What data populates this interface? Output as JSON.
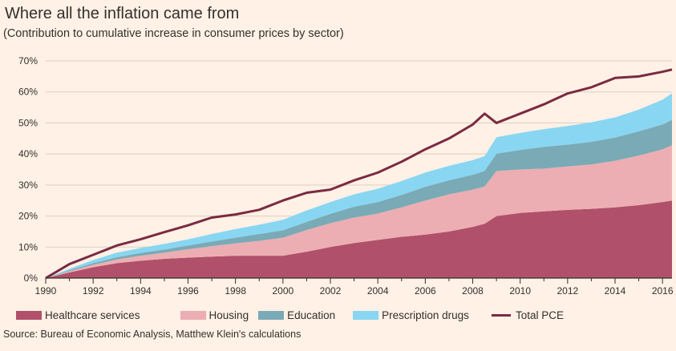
{
  "title": "Where all the inflation came from",
  "subtitle": "(Contribution to cumulative increase in consumer prices by sector)",
  "source": "Source: Bureau of Economic Analysis, Matthew Klein's calculations",
  "colors": {
    "background": "#fff1e5",
    "healthcare": "#b1506a",
    "housing": "#ecaeb2",
    "education": "#79aab6",
    "drugs": "#88d6f2",
    "total": "#7a2a42",
    "grid": "#d9cfc4",
    "axis": "#33302e"
  },
  "chart_data": {
    "type": "area",
    "stacked": true,
    "xlabel": "",
    "ylabel": "",
    "xlim": [
      1990,
      2016.4
    ],
    "ylim": [
      0,
      70
    ],
    "yticks": [
      "0%",
      "10%",
      "20%",
      "30%",
      "40%",
      "50%",
      "60%",
      "70%"
    ],
    "xticks": [
      "1990",
      "1992",
      "1994",
      "1996",
      "1998",
      "2000",
      "2002",
      "2004",
      "2006",
      "2008",
      "2010",
      "2012",
      "2014",
      "2016"
    ],
    "grid": true,
    "legend_position": "bottom",
    "x": [
      1990,
      1991,
      1992,
      1993,
      1994,
      1995,
      1996,
      1997,
      1998,
      1999,
      2000,
      2001,
      2002,
      2003,
      2004,
      2005,
      2006,
      2007,
      2008,
      2008.5,
      2009,
      2010,
      2011,
      2012,
      2013,
      2014,
      2015,
      2016,
      2016.4
    ],
    "series": [
      {
        "name": "Healthcare services",
        "kind": "area",
        "values": [
          0,
          1.8,
          3.5,
          4.8,
          5.6,
          6.2,
          6.6,
          6.9,
          7.2,
          7.2,
          7.2,
          8.5,
          10,
          11.3,
          12.3,
          13.3,
          14,
          15,
          16.5,
          17.5,
          20,
          21,
          21.5,
          22,
          22.3,
          22.8,
          23.5,
          24.5,
          25
        ]
      },
      {
        "name": "Housing",
        "kind": "area",
        "values": [
          0,
          0.4,
          0.8,
          1.2,
          1.6,
          2,
          2.7,
          3.4,
          4,
          4.8,
          5.8,
          7,
          7.7,
          8.2,
          8.5,
          9.5,
          11,
          12,
          12,
          12,
          14.5,
          14,
          13.8,
          14,
          14.3,
          15,
          16,
          17,
          17.8
        ]
      },
      {
        "name": "Education",
        "kind": "area",
        "values": [
          0,
          0.3,
          0.5,
          0.7,
          0.9,
          1,
          1.2,
          1.5,
          1.8,
          2.2,
          2.4,
          2.6,
          3,
          3.5,
          3.7,
          4,
          4.4,
          4.5,
          4.8,
          5,
          5.6,
          6.3,
          7,
          7,
          7.3,
          7.5,
          7.8,
          8,
          8.2
        ]
      },
      {
        "name": "Prescription drugs",
        "kind": "area",
        "values": [
          0,
          0.5,
          1,
          1.5,
          1.6,
          1.8,
          2,
          2.4,
          2.8,
          3,
          3.4,
          3.7,
          3.8,
          4,
          4.3,
          4.5,
          4.6,
          4.7,
          4.7,
          4.8,
          5.3,
          5.5,
          5.7,
          6,
          6.3,
          6.5,
          7,
          8,
          8.5
        ]
      },
      {
        "name": "Total PCE",
        "kind": "line",
        "values": [
          0,
          4.5,
          7.5,
          10.5,
          12.5,
          14.8,
          17,
          19.5,
          20.5,
          22,
          25,
          27.5,
          28.5,
          31.5,
          34,
          37.5,
          41.5,
          45,
          49.5,
          53,
          50,
          53,
          56,
          59.5,
          61.5,
          64.5,
          65,
          66.5,
          67.2
        ]
      }
    ]
  }
}
